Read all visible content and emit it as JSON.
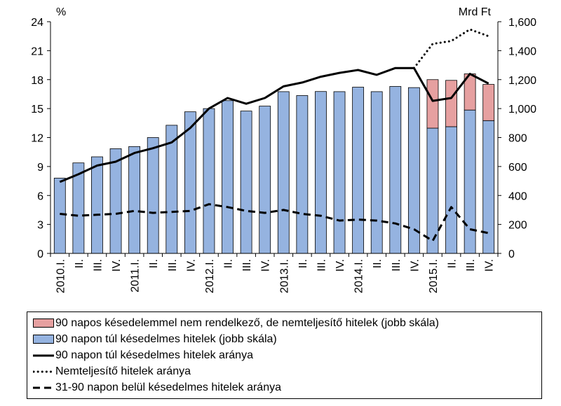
{
  "chart_data": {
    "type": "bar+line",
    "title": "",
    "left_axis": {
      "unit": "%",
      "ticks": [
        "24",
        "21",
        "18",
        "15",
        "12",
        "9",
        "6",
        "3",
        "0"
      ],
      "ylim": [
        0,
        24
      ]
    },
    "right_axis": {
      "unit": "Mrd Ft",
      "ticks": [
        "1,600",
        "1,400",
        "1,200",
        "1,000",
        "800",
        "600",
        "400",
        "200",
        "0"
      ],
      "ylim": [
        0,
        1600
      ]
    },
    "categories": [
      "2010.I.",
      "II.",
      "III.",
      "IV.",
      "2011.I.",
      "II.",
      "III.",
      "IV.",
      "2012.I.",
      "II.",
      "III.",
      "IV.",
      "2013.I.",
      "II.",
      "III.",
      "IV.",
      "2014.I.",
      "II.",
      "III.",
      "IV.",
      "2015.I.",
      "II.",
      "III.",
      "IV."
    ],
    "bars": [
      {
        "name": "90 napos késedelemmel nem rendelkező, de nemteljesítő hitelek (jobb skála)",
        "color": "#e6a0a0",
        "axis": "right",
        "values": [
          0,
          0,
          0,
          0,
          0,
          0,
          0,
          0,
          0,
          0,
          0,
          0,
          0,
          0,
          0,
          0,
          0,
          0,
          0,
          0,
          335,
          320,
          250,
          250
        ]
      },
      {
        "name": "90 napon túl késedelmes hitelek (jobb skála)",
        "color": "#95b3e0",
        "axis": "right",
        "values": [
          520,
          625,
          667,
          723,
          738,
          800,
          885,
          978,
          1000,
          1055,
          983,
          1017,
          1117,
          1090,
          1118,
          1117,
          1148,
          1117,
          1153,
          1145,
          865,
          875,
          990,
          917
        ]
      }
    ],
    "lines": [
      {
        "name": "90 napon túl késedelmes hitelek aránya",
        "style": "solid",
        "axis": "left",
        "values": [
          7.4,
          8.2,
          9.1,
          9.5,
          10.4,
          10.9,
          11.5,
          13.0,
          15.0,
          16.1,
          15.5,
          16.1,
          17.3,
          17.7,
          18.3,
          18.7,
          19.0,
          18.5,
          19.2,
          19.2,
          15.8,
          16.1,
          18.6,
          17.6
        ]
      },
      {
        "name": "Nemteljesítő hitelek aránya",
        "style": "dotted",
        "axis": "left",
        "values": [
          null,
          null,
          null,
          null,
          null,
          null,
          null,
          null,
          null,
          null,
          null,
          null,
          null,
          null,
          null,
          null,
          null,
          null,
          null,
          19.2,
          21.7,
          22.0,
          23.2,
          22.5
        ]
      },
      {
        "name": "31-90 napon belül késedelmes hitelek aránya",
        "style": "dashed",
        "axis": "left",
        "values": [
          4.1,
          3.9,
          4.0,
          4.1,
          4.4,
          4.2,
          4.3,
          4.4,
          5.1,
          4.8,
          4.4,
          4.2,
          4.5,
          4.1,
          3.9,
          3.4,
          3.5,
          3.4,
          3.1,
          2.5,
          1.3,
          4.8,
          2.5,
          2.1
        ]
      }
    ],
    "legend_placement": "bottom"
  }
}
